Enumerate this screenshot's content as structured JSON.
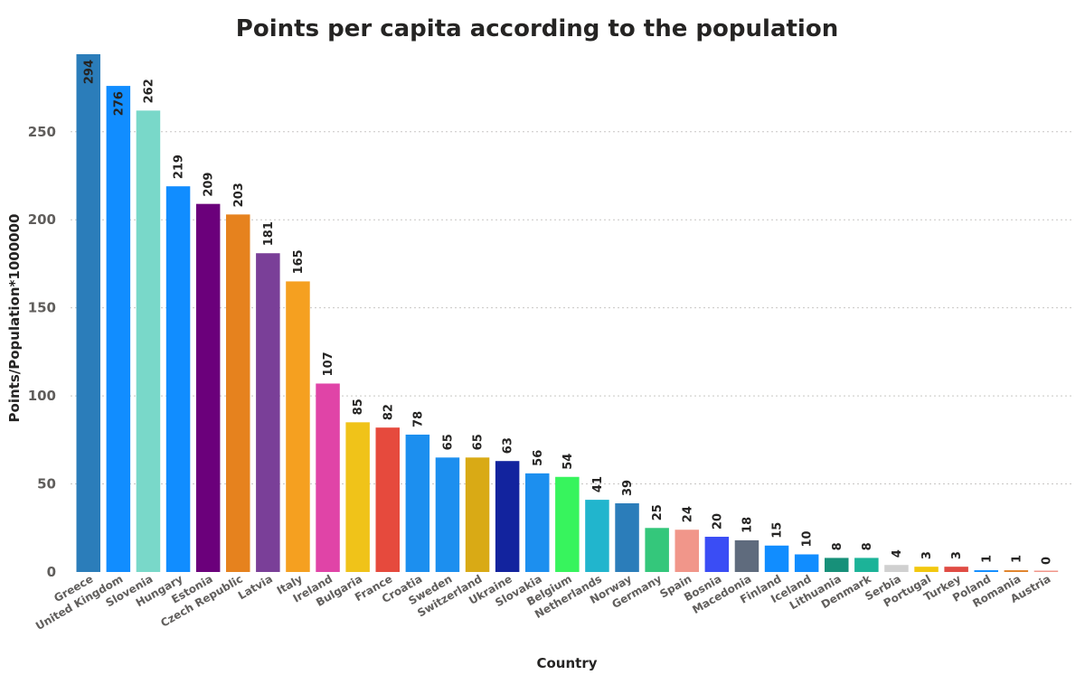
{
  "chart_data": {
    "type": "bar",
    "title": "Points per capita according to the population",
    "xlabel": "Country",
    "ylabel": "Points/Population*1000000",
    "ylim": [
      0,
      294
    ],
    "yticks": [
      0,
      50,
      100,
      150,
      200,
      250
    ],
    "grid": true,
    "categories": [
      "Greece",
      "United Kingdom",
      "Slovenia",
      "Hungary",
      "Estonia",
      "Czech Republic",
      "Latvia",
      "Italy",
      "Ireland",
      "Bulgaria",
      "France",
      "Croatia",
      "Sweden",
      "Switzerland",
      "Ukraine",
      "Slovakia",
      "Belgium",
      "Netherlands",
      "Norway",
      "Germany",
      "Spain",
      "Bosnia",
      "Macedonia",
      "Finland",
      "Iceland",
      "Lithuania",
      "Denmark",
      "Serbia",
      "Portugal",
      "Turkey",
      "Poland",
      "Romania",
      "Austria"
    ],
    "values": [
      294,
      276,
      262,
      219,
      209,
      203,
      181,
      165,
      107,
      85,
      82,
      78,
      65,
      65,
      63,
      56,
      54,
      41,
      39,
      25,
      24,
      20,
      18,
      15,
      10,
      8,
      8,
      4,
      3,
      3,
      1,
      1,
      0
    ],
    "colors": [
      "#2b7dba",
      "#118dff",
      "#79d8c9",
      "#118dff",
      "#6b007b",
      "#e6821e",
      "#7a3f98",
      "#f5a020",
      "#e044a7",
      "#f0c319",
      "#e64a3d",
      "#1c8fef",
      "#1c8fef",
      "#d9aa15",
      "#12239e",
      "#1c8fef",
      "#37f45d",
      "#21b5cd",
      "#2b7dba",
      "#34c77b",
      "#f1968a",
      "#3a4df5",
      "#5f6b7d",
      "#118dff",
      "#118dff",
      "#179079",
      "#1cb398",
      "#d0d0d0",
      "#f2c80f",
      "#e04c44",
      "#118dff",
      "#e0822a",
      "#f1968a"
    ]
  }
}
